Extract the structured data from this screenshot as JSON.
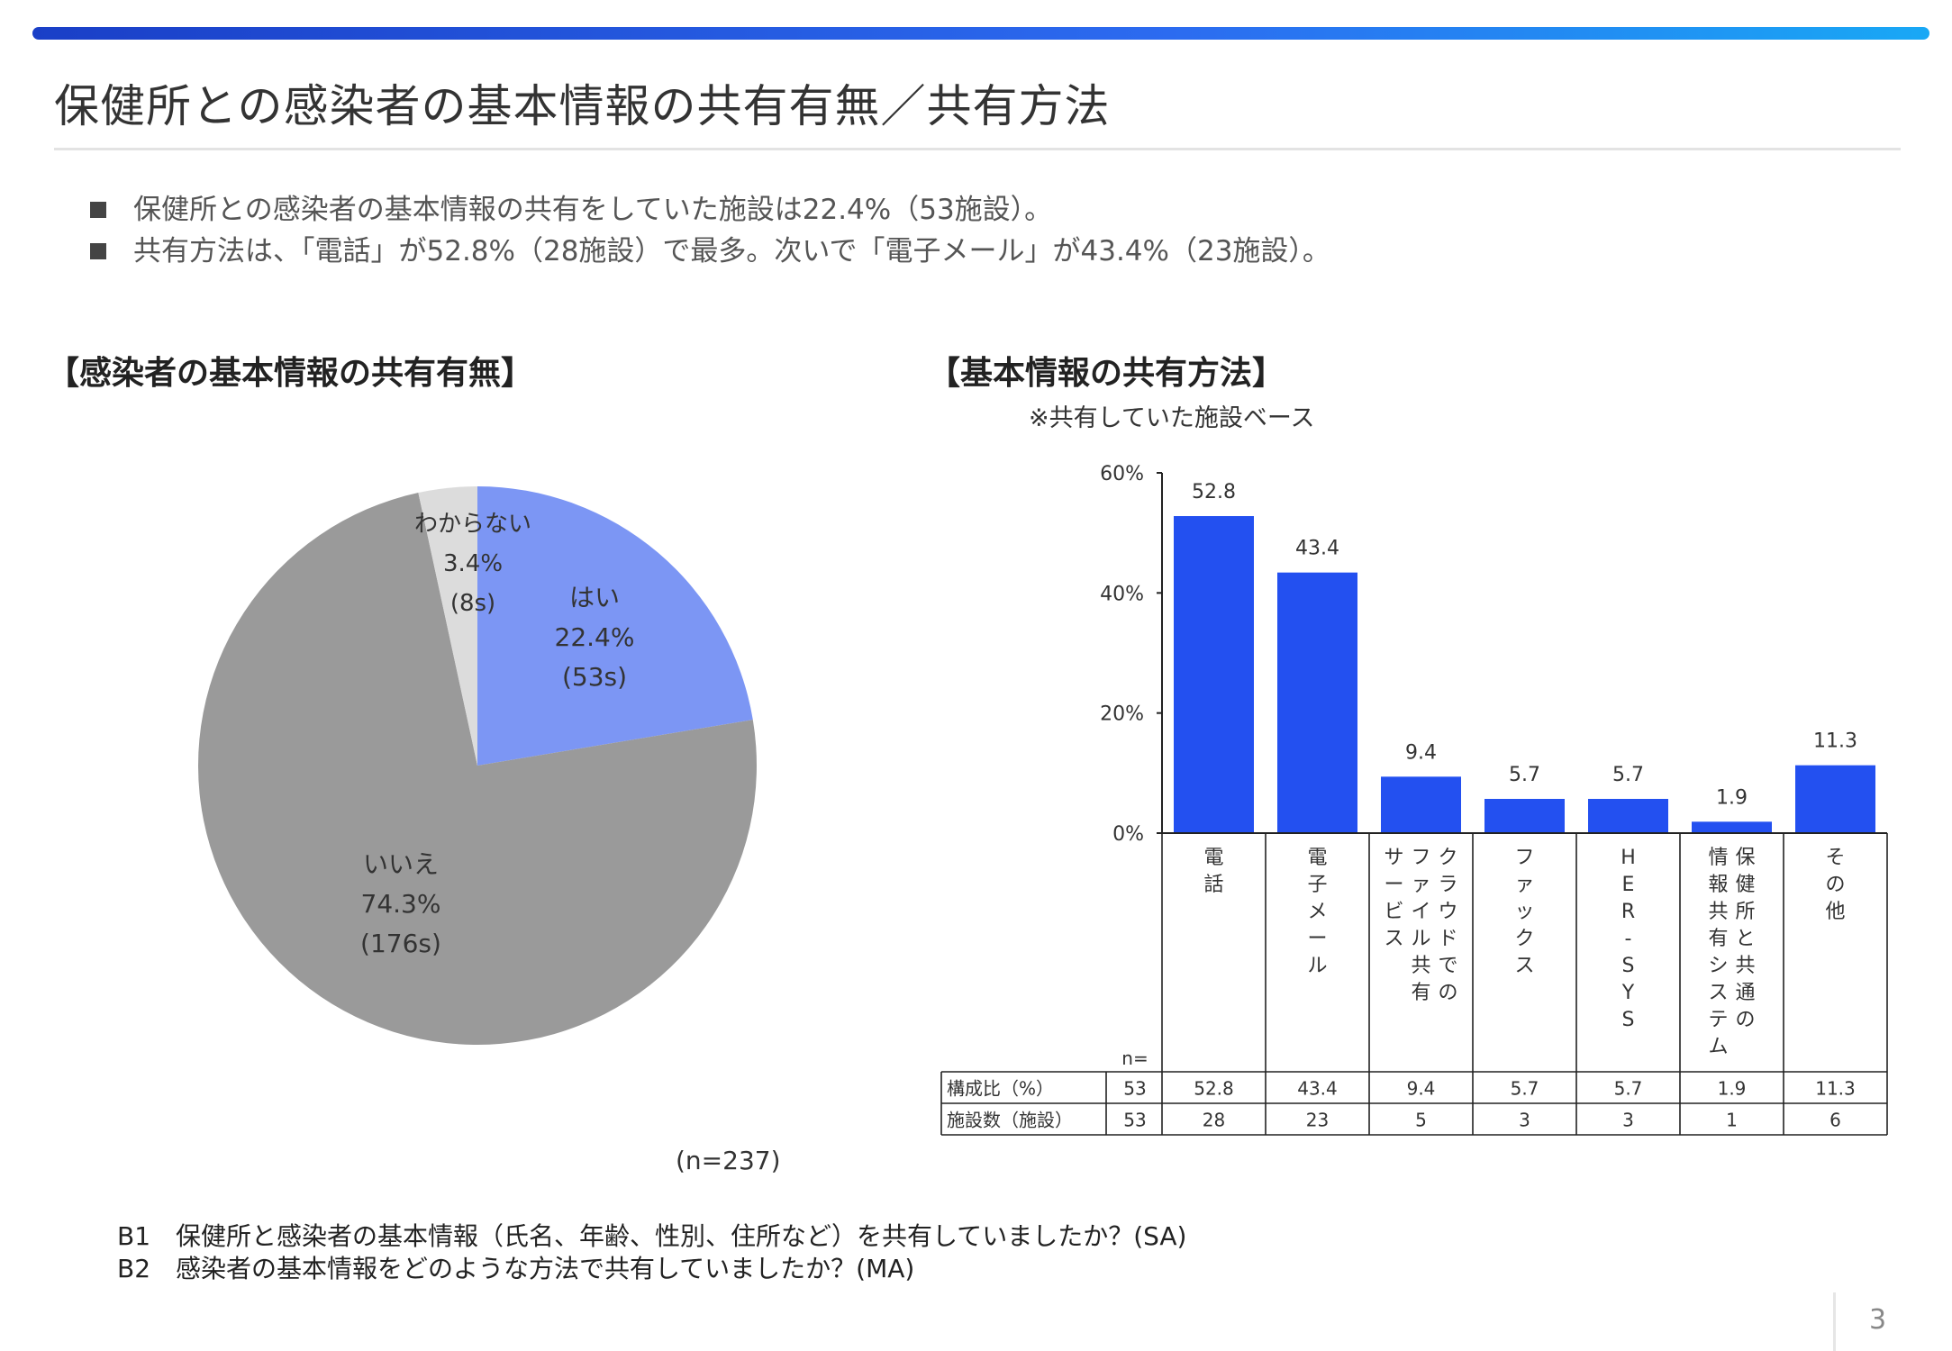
{
  "page": {
    "title": "保健所との感染者の基本情報の共有有無／共有方法",
    "bullets": [
      "保健所との感染者の基本情報の共有をしていた施設は22.4%（53施設）。",
      "共有方法は、「電話」が52.8%（28施設）で最多。次いで「電子メール」が43.4%（23施設）。"
    ],
    "left_section_title": "【感染者の基本情報の共有有無】",
    "right_section_title": "【基本情報の共有方法】",
    "right_note": "※共有していた施設ベース",
    "n_label": "(n=237)",
    "questions": [
      "B1　保健所と感染者の基本情報（氏名、年齢、性別、住所など）を共有していましたか？(SA)",
      "B2　感染者の基本情報をどのような方法で共有していましたか？(MA)"
    ],
    "page_number": "3"
  },
  "colors": {
    "accent": "#2350f0",
    "pie_yes": "#7c96f4",
    "pie_no": "#9a9a9a",
    "pie_unknown": "#dcdcdc"
  },
  "chart_data": [
    {
      "type": "pie",
      "title": "【感染者の基本情報の共有有無】",
      "slices": [
        {
          "label": "はい",
          "value": 22.4,
          "pct_text": "22.4%",
          "count_text": "(53s)",
          "color": "#7c96f4"
        },
        {
          "label": "いいえ",
          "value": 74.3,
          "pct_text": "74.3%",
          "count_text": "(176s)",
          "color": "#9a9a9a"
        },
        {
          "label": "わからない",
          "value": 3.4,
          "pct_text": "3.4%",
          "count_text": "(8s)",
          "color": "#dcdcdc"
        }
      ],
      "n": "(n=237)"
    },
    {
      "type": "bar",
      "title": "【基本情報の共有方法】",
      "subtitle": "※共有していた施設ベース",
      "categories": [
        "電話",
        "電子メール",
        "クラウドでのファイル共有サービス",
        "ファックス",
        "HER-SYS",
        "保健所と共通の情報共有システム",
        "その他"
      ],
      "category_columns": [
        [
          "電話"
        ],
        [
          "電子メール"
        ],
        [
          "クラウドでの",
          "ファイル共有",
          "サービス"
        ],
        [
          "ファックス"
        ],
        [
          "HER-SYS"
        ],
        [
          "保健所と共通の",
          "情報共有システム"
        ],
        [
          "その他"
        ]
      ],
      "values": [
        52.8,
        43.4,
        9.4,
        5.7,
        5.7,
        1.9,
        11.3
      ],
      "value_labels": [
        "52.8",
        "43.4",
        "9.4",
        "5.7",
        "5.7",
        "1.9",
        "11.3"
      ],
      "color": "#2350f0",
      "ylim": [
        0,
        60
      ],
      "ytick_labels": [
        "0%",
        "20%",
        "40%",
        "60%"
      ],
      "table": {
        "n_header": "n=",
        "rows": [
          {
            "label": "構成比（%）",
            "n": "53",
            "cells": [
              "52.8",
              "43.4",
              "9.4",
              "5.7",
              "5.7",
              "1.9",
              "11.3"
            ]
          },
          {
            "label": "施設数（施設）",
            "n": "53",
            "cells": [
              "28",
              "23",
              "5",
              "3",
              "3",
              "1",
              "6"
            ]
          }
        ]
      }
    }
  ]
}
